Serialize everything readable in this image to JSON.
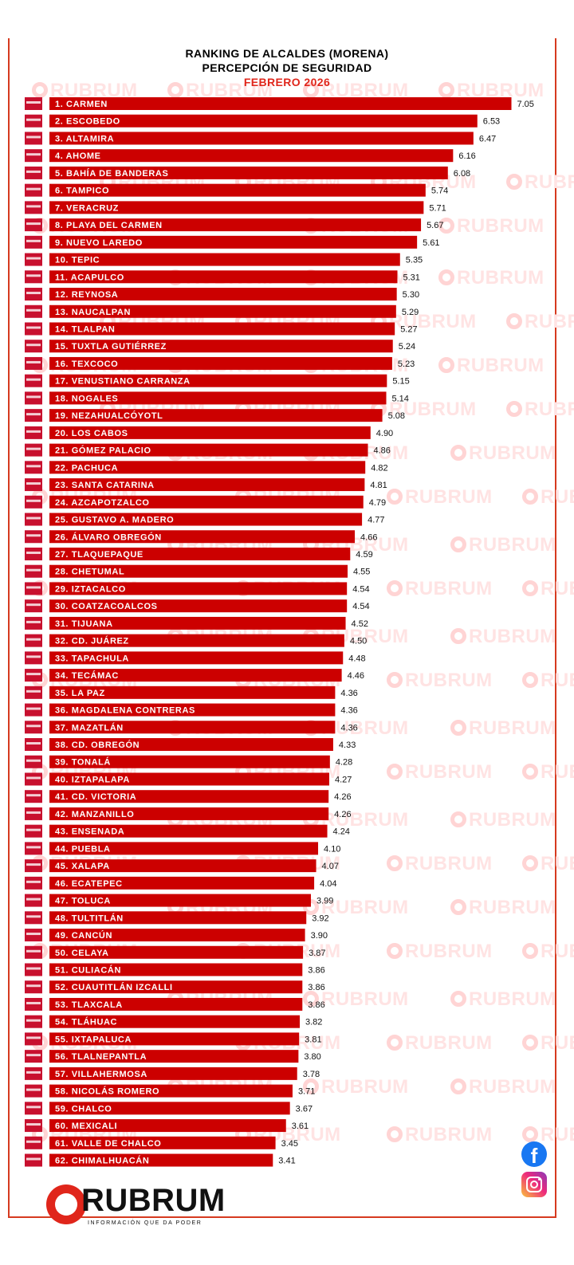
{
  "header": {
    "line1": "RANKING DE ALCALDES  (MORENA)",
    "line2": "PERCEPCIÓN DE SEGURIDAD",
    "line3": "FEBRERO 2026"
  },
  "watermark_text": "RUBRUM",
  "brand": {
    "logo_text": "RUBRUM",
    "tagline": "INFORMACIÓN QUE DA PODER",
    "primary_color": "#e0261b",
    "bar_color": "#cc0000"
  },
  "social": {
    "facebook_icon": "f"
  },
  "chart_data": {
    "type": "bar",
    "orientation": "horizontal",
    "title": "RANKING DE ALCALDES  (MORENA)",
    "subtitle": "PERCEPCIÓN DE SEGURIDAD",
    "categories": [
      "1. CARMEN",
      "2. ESCOBEDO",
      "3. ALTAMIRA",
      "4. AHOME",
      "5. BAHÍA DE BANDERAS",
      "6. TAMPICO",
      "7. VERACRUZ",
      "8. PLAYA DEL CARMEN",
      "9. NUEVO LAREDO",
      "10. TEPIC",
      "11. ACAPULCO",
      "12. REYNOSA",
      "13. NAUCALPAN",
      "14. TLALPAN",
      "15. TUXTLA GUTIÉRREZ",
      "16. TEXCOCO",
      "17. VENUSTIANO CARRANZA",
      "18. NOGALES",
      "19. NEZAHUALCÓYOTL",
      "20. LOS CABOS",
      "21. GÓMEZ PALACIO",
      "22. PACHUCA",
      "23. SANTA CATARINA",
      "24. AZCAPOTZALCO",
      "25. GUSTAVO A. MADERO",
      "26. ÁLVARO OBREGÓN",
      "27. TLAQUEPAQUE",
      "28. CHETUMAL",
      "29. IZTACALCO",
      "30. COATZACOALCOS",
      "31. TIJUANA",
      "32. CD. JUÁREZ",
      "33. TAPACHULA",
      "34. TECÁMAC",
      "35. LA PAZ",
      "36. MAGDALENA CONTRERAS",
      "37. MAZATLÁN",
      "38. CD. OBREGÓN",
      "39. TONALÁ",
      "40. IZTAPALAPA",
      "41. CD. VICTORIA",
      "42. MANZANILLO",
      "43. ENSENADA",
      "44. PUEBLA",
      "45. XALAPA",
      "46. ECATEPEC",
      "47. TOLUCA",
      "48. TULTITLÁN",
      "49. CANCÚN",
      "50. CELAYA",
      "51. CULIACÁN",
      "52. CUAUTITLÁN IZCALLI",
      "53. TLAXCALA",
      "54. TLÁHUAC",
      "55. IXTAPALUCA",
      "56. TLALNEPANTLA",
      "57. VILLAHERMOSA",
      "58. NICOLÁS ROMERO",
      "59. CHALCO",
      "60. MEXICALI",
      "61. VALLE DE CHALCO",
      "62. CHIMALHUACÁN"
    ],
    "value_labels": [
      "7.05",
      "6.53",
      "6.47",
      "6.16",
      "6.08",
      "5.74",
      "5.71",
      "5.67",
      "5.61",
      "5.35",
      "5.31",
      "5.30",
      "5.29",
      "5.27",
      "5.24",
      "5.23",
      "5.15",
      "5.14",
      "5.08",
      "4.90",
      "4.86",
      "4.82",
      "4.81",
      "4.79",
      "4.77",
      "4.66",
      "4.59",
      "4.55",
      "4.54",
      "4.54",
      "4.52",
      "4.50",
      "4.48",
      "4.46",
      "4.36",
      "4.36",
      "4.36",
      "4.33",
      "4.28",
      "4.27",
      "4.26",
      "4.26",
      "4.24",
      "4.10",
      "4.07",
      "4.04",
      "3.99",
      "3.92",
      "3.90",
      "3.87",
      "3.86",
      "3.86",
      "3.86",
      "3.82",
      "3.81",
      "3.80",
      "3.78",
      "3.71",
      "3.67",
      "3.61",
      "3.45",
      "3.41"
    ],
    "values": [
      7.05,
      6.53,
      6.47,
      6.16,
      6.08,
      5.74,
      5.71,
      5.67,
      5.61,
      5.35,
      5.31,
      5.3,
      5.29,
      5.27,
      5.24,
      5.23,
      5.15,
      5.14,
      5.08,
      4.9,
      4.86,
      4.82,
      4.81,
      4.79,
      4.77,
      4.66,
      4.59,
      4.55,
      4.54,
      4.54,
      4.52,
      4.5,
      4.48,
      4.46,
      4.36,
      4.36,
      4.36,
      4.33,
      4.28,
      4.27,
      4.26,
      4.26,
      4.24,
      4.1,
      4.07,
      4.04,
      3.99,
      3.92,
      3.9,
      3.87,
      3.86,
      3.86,
      3.86,
      3.82,
      3.81,
      3.8,
      3.78,
      3.71,
      3.67,
      3.61,
      3.45,
      3.41
    ],
    "xlabel": "",
    "ylabel": "",
    "grid": false,
    "legend": "none"
  }
}
